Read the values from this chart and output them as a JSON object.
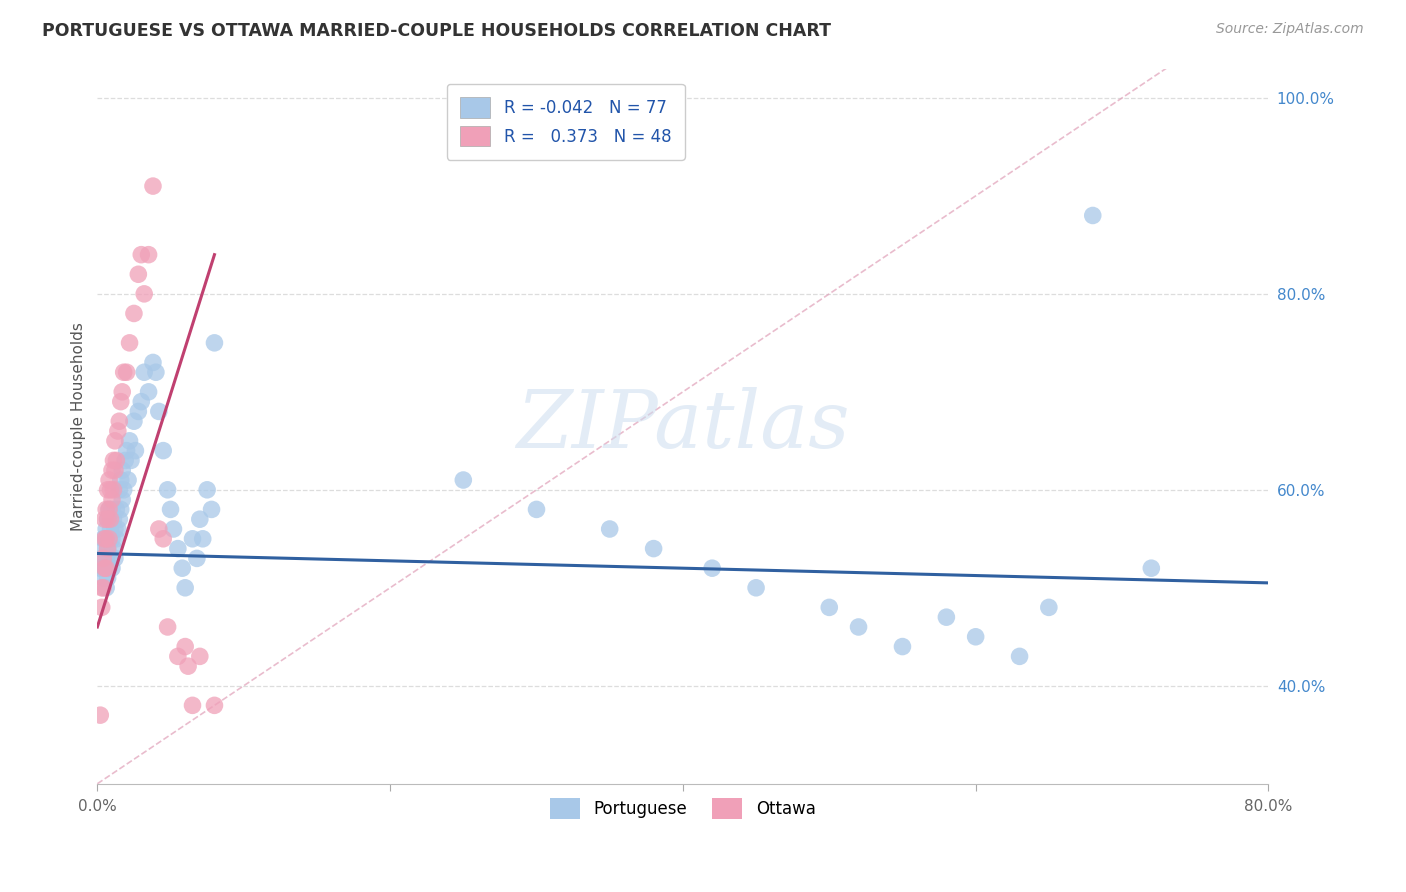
{
  "title": "PORTUGUESE VS OTTAWA MARRIED-COUPLE HOUSEHOLDS CORRELATION CHART",
  "source": "Source: ZipAtlas.com",
  "ylabel": "Married-couple Households",
  "watermark": "ZIPatlas",
  "xlim": [
    0.0,
    0.8
  ],
  "ylim": [
    0.3,
    1.03
  ],
  "blue_R": -0.042,
  "blue_N": 77,
  "pink_R": 0.373,
  "pink_N": 48,
  "blue_color": "#A8C8E8",
  "pink_color": "#F0A0B8",
  "blue_line_color": "#3060A0",
  "pink_line_color": "#C04070",
  "dashed_line_color": "#E0A0B8",
  "background_color": "#FFFFFF",
  "grid_color": "#DDDDDD",
  "blue_x": [
    0.002,
    0.003,
    0.004,
    0.004,
    0.005,
    0.005,
    0.006,
    0.006,
    0.006,
    0.007,
    0.007,
    0.007,
    0.008,
    0.008,
    0.008,
    0.009,
    0.009,
    0.01,
    0.01,
    0.01,
    0.011,
    0.011,
    0.012,
    0.012,
    0.013,
    0.013,
    0.014,
    0.015,
    0.015,
    0.016,
    0.016,
    0.017,
    0.017,
    0.018,
    0.019,
    0.02,
    0.021,
    0.022,
    0.023,
    0.025,
    0.026,
    0.028,
    0.03,
    0.032,
    0.035,
    0.038,
    0.04,
    0.042,
    0.045,
    0.048,
    0.05,
    0.052,
    0.055,
    0.058,
    0.06,
    0.065,
    0.068,
    0.07,
    0.072,
    0.075,
    0.078,
    0.08,
    0.25,
    0.3,
    0.35,
    0.38,
    0.42,
    0.45,
    0.5,
    0.52,
    0.55,
    0.58,
    0.6,
    0.63,
    0.65,
    0.68,
    0.72
  ],
  "blue_y": [
    0.52,
    0.53,
    0.51,
    0.55,
    0.52,
    0.54,
    0.5,
    0.53,
    0.56,
    0.51,
    0.54,
    0.57,
    0.52,
    0.55,
    0.58,
    0.53,
    0.56,
    0.52,
    0.55,
    0.58,
    0.54,
    0.57,
    0.53,
    0.56,
    0.55,
    0.58,
    0.56,
    0.57,
    0.6,
    0.58,
    0.61,
    0.59,
    0.62,
    0.6,
    0.63,
    0.64,
    0.61,
    0.65,
    0.63,
    0.67,
    0.64,
    0.68,
    0.69,
    0.72,
    0.7,
    0.73,
    0.72,
    0.68,
    0.64,
    0.6,
    0.58,
    0.56,
    0.54,
    0.52,
    0.5,
    0.55,
    0.53,
    0.57,
    0.55,
    0.6,
    0.58,
    0.75,
    0.61,
    0.58,
    0.56,
    0.54,
    0.52,
    0.5,
    0.48,
    0.46,
    0.44,
    0.47,
    0.45,
    0.43,
    0.48,
    0.88,
    0.52
  ],
  "pink_x": [
    0.002,
    0.003,
    0.003,
    0.004,
    0.004,
    0.005,
    0.005,
    0.005,
    0.006,
    0.006,
    0.006,
    0.007,
    0.007,
    0.007,
    0.008,
    0.008,
    0.008,
    0.009,
    0.009,
    0.01,
    0.01,
    0.011,
    0.011,
    0.012,
    0.012,
    0.013,
    0.014,
    0.015,
    0.016,
    0.017,
    0.018,
    0.02,
    0.022,
    0.025,
    0.028,
    0.03,
    0.032,
    0.035,
    0.038,
    0.042,
    0.045,
    0.048,
    0.055,
    0.06,
    0.062,
    0.065,
    0.07,
    0.08
  ],
  "pink_y": [
    0.37,
    0.48,
    0.5,
    0.5,
    0.53,
    0.52,
    0.55,
    0.57,
    0.52,
    0.55,
    0.58,
    0.54,
    0.57,
    0.6,
    0.55,
    0.58,
    0.61,
    0.57,
    0.6,
    0.59,
    0.62,
    0.6,
    0.63,
    0.62,
    0.65,
    0.63,
    0.66,
    0.67,
    0.69,
    0.7,
    0.72,
    0.72,
    0.75,
    0.78,
    0.82,
    0.84,
    0.8,
    0.84,
    0.91,
    0.56,
    0.55,
    0.46,
    0.43,
    0.44,
    0.42,
    0.38,
    0.43,
    0.38
  ],
  "blue_trend_x": [
    0.0,
    0.8
  ],
  "blue_trend_y": [
    0.535,
    0.505
  ],
  "pink_trend_x": [
    0.0,
    0.08
  ],
  "pink_trend_y": [
    0.46,
    0.84
  ]
}
